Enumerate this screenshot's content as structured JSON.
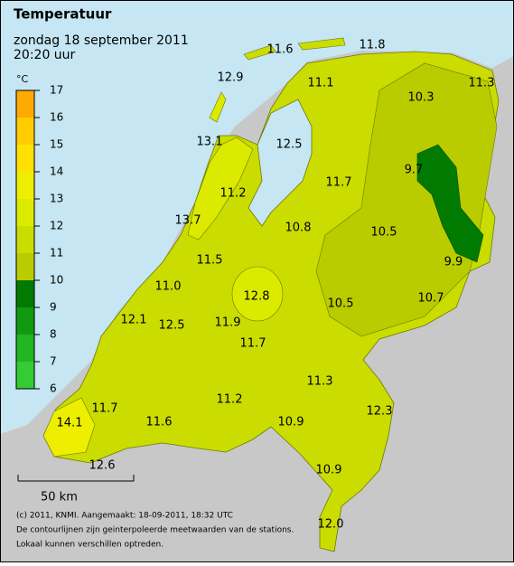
{
  "header": {
    "title": "Temperatuur",
    "subtitle": "zondag 18 september 2011",
    "time": "20:20 uur"
  },
  "legend": {
    "unit": "°C",
    "ticks": [
      6,
      7,
      8,
      9,
      10,
      11,
      12,
      13,
      14,
      15,
      16,
      17
    ],
    "colors": [
      "#33cc33",
      "#22b522",
      "#109a10",
      "#007a00",
      "#b8cc00",
      "#cadc00",
      "#dcea00",
      "#eeee00",
      "#ffe000",
      "#ffcc00",
      "#ffaa00"
    ]
  },
  "stations": [
    "11.6",
    "11.8",
    "12.9",
    "11.1",
    "10.3",
    "11.3",
    "13.1",
    "12.5",
    "9.7",
    "11.2",
    "11.7",
    "13.7",
    "10.8",
    "10.5",
    "9.9",
    "11.5",
    "11.0",
    "12.8",
    "10.5",
    "10.7",
    "12.1",
    "12.5",
    "11.9",
    "11.7",
    "11.3",
    "11.7",
    "11.2",
    "12.3",
    "14.1",
    "11.6",
    "10.9",
    "12.6",
    "10.9",
    "12.0"
  ],
  "scale": "50 km",
  "footer": [
    "(c) 2011, KNMI. Aangemaakt: 18-09-2011, 18:32 UTC",
    "De contourlijnen zijn geinterpoleerde meetwaarden van de stations.",
    "Lokaal kunnen verschillen optreden."
  ]
}
